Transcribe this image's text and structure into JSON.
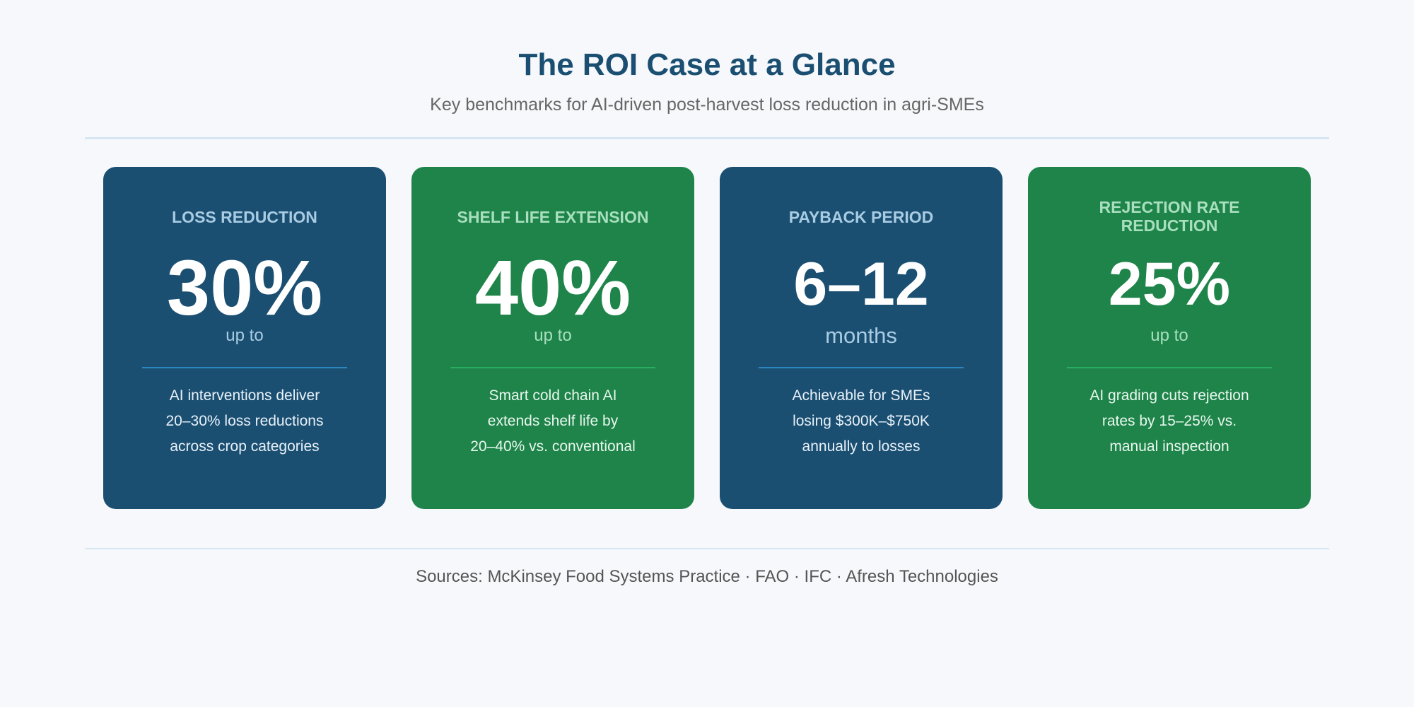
{
  "header": {
    "title": "The ROI Case at a Glance",
    "subtitle": "Key benchmarks for AI-driven post-harvest loss reduction in agri-SMEs"
  },
  "cards": [
    {
      "label": "LOSS REDUCTION",
      "value": "30%",
      "unit": "up to",
      "desc_lines": [
        "AI interventions deliver",
        "20–30% loss reductions",
        "across crop categories"
      ],
      "color": "#1b4f72"
    },
    {
      "label": "SHELF LIFE EXTENSION",
      "value": "40%",
      "unit": "up to",
      "desc_lines": [
        "Smart cold chain AI",
        "extends shelf life by",
        "20–40% vs. conventional"
      ],
      "color": "#1e8449"
    },
    {
      "label": "PAYBACK PERIOD",
      "value": "6–12",
      "unit": "months",
      "desc_lines": [
        "Achievable for SMEs",
        "losing $300K–$750K",
        "annually to losses"
      ],
      "color": "#1b4f72"
    },
    {
      "label_lines": [
        "REJECTION RATE",
        "REDUCTION"
      ],
      "value": "25%",
      "unit": "up to",
      "desc_lines": [
        "AI grading cuts rejection",
        "rates by 15–25% vs.",
        "manual inspection"
      ],
      "color": "#1e8449"
    }
  ],
  "footer": {
    "sources": "Sources: McKinsey Food Systems Practice · FAO · IFC · Afresh Technologies"
  }
}
